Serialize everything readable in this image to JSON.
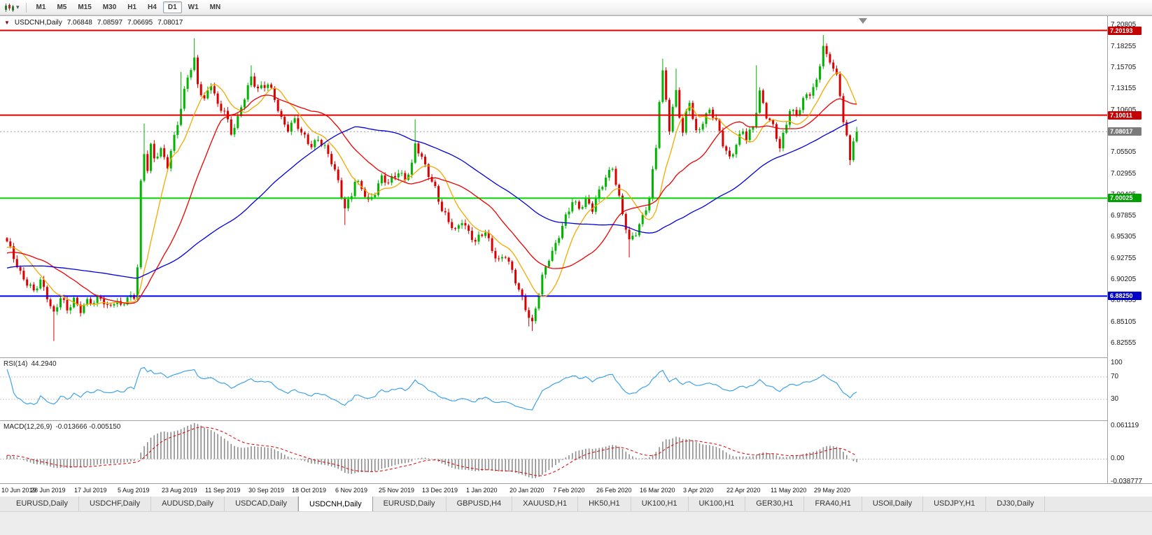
{
  "toolbar": {
    "timeframes": [
      "M1",
      "M5",
      "M15",
      "M30",
      "H1",
      "H4",
      "D1",
      "W1",
      "MN"
    ],
    "active_timeframe": "D1"
  },
  "icons": {
    "one_click": "▼",
    "chart_dropdown": "▾"
  },
  "chart": {
    "symbol": "USDCNH,Daily",
    "ohlc": {
      "open": "7.06848",
      "high": "7.08597",
      "low": "7.06695",
      "close": "7.08017"
    }
  },
  "indicators": {
    "rsi": {
      "name": "RSI(14)",
      "value": "44.2940"
    },
    "macd": {
      "name": "MACD(12,26,9)",
      "value": "-0.013666 -0.005150"
    }
  },
  "tabs": {
    "active_index": 4,
    "items": [
      "EURUSD,Daily",
      "USDCHF,Daily",
      "AUDUSD,Daily",
      "USDCAD,Daily",
      "USDCNH,Daily",
      "EURUSD,Daily",
      "GBPUSD,H4",
      "XAUUSD,H1",
      "HK50,H1",
      "UK100,H1",
      "UK100,H1",
      "GER30,H1",
      "FRA40,H1",
      "USOil,Daily",
      "USDJPY,H1",
      "DJ30,Daily"
    ]
  },
  "chart_data": {
    "type": "candlestick",
    "symbol": "USDCNH",
    "timeframe": "Daily",
    "num_candles": 255,
    "candles_per_label": 13,
    "x_labels": [
      "10 Jun 2019",
      "28 Jun 2019",
      "17 Jul 2019",
      "5 Aug 2019",
      "23 Aug 2019",
      "11 Sep 2019",
      "30 Sep 2019",
      "18 Oct 2019",
      "6 Nov 2019",
      "25 Nov 2019",
      "13 Dec 2019",
      "1 Jan 2020",
      "20 Jan 2020",
      "7 Feb 2020",
      "26 Feb 2020",
      "16 Mar 2020",
      "3 Apr 2020",
      "22 Apr 2020",
      "11 May 2020",
      "29 May 2020"
    ],
    "price_axis": {
      "min": 6.8105,
      "max": 7.2175
    },
    "price_ticks": [
      "7.20805",
      "7.18255",
      "7.15705",
      "7.13155",
      "7.10605",
      "7.08055",
      "7.05505",
      "7.02955",
      "7.00405",
      "6.97855",
      "6.95305",
      "6.92755",
      "6.90205",
      "6.87655",
      "6.85105",
      "6.82555"
    ],
    "badges": [
      {
        "label": "7.20193",
        "price": 7.20193,
        "color": "#c40000"
      },
      {
        "label": "7.10011",
        "price": 7.10011,
        "color": "#c40000"
      },
      {
        "label": "7.08017",
        "price": 7.08017,
        "color": "#7a7a7a"
      },
      {
        "label": "7.00025",
        "price": 7.00025,
        "color": "#00a000"
      },
      {
        "label": "6.88250",
        "price": 6.8825,
        "color": "#0000c8"
      }
    ],
    "hlines": [
      {
        "price": 7.20193,
        "color": "#e00000",
        "width": 2
      },
      {
        "price": 7.10011,
        "color": "#e00000",
        "width": 2
      },
      {
        "price": 7.00025,
        "color": "#00d300",
        "width": 2
      },
      {
        "price": 6.8825,
        "color": "#0000f0",
        "width": 2
      }
    ],
    "bid_line": {
      "price": 7.08017,
      "color": "#a0a0a0"
    },
    "last_candle": {
      "open": 7.06848,
      "high": 7.08597,
      "low": 7.06695,
      "close": 7.08017
    },
    "close_anchors": [
      [
        0,
        6.946
      ],
      [
        2,
        6.93
      ],
      [
        4,
        6.912
      ],
      [
        6,
        6.898
      ],
      [
        8,
        6.886
      ],
      [
        10,
        6.9
      ],
      [
        12,
        6.884
      ],
      [
        14,
        6.862
      ],
      [
        16,
        6.88
      ],
      [
        18,
        6.864
      ],
      [
        20,
        6.879
      ],
      [
        22,
        6.868
      ],
      [
        24,
        6.876
      ],
      [
        26,
        6.872
      ],
      [
        28,
        6.881
      ],
      [
        30,
        6.871
      ],
      [
        32,
        6.877
      ],
      [
        34,
        6.869
      ],
      [
        36,
        6.878
      ],
      [
        38,
        6.884
      ],
      [
        39,
        6.92
      ],
      [
        40,
        7.02
      ],
      [
        41,
        7.056
      ],
      [
        42,
        7.034
      ],
      [
        43,
        7.06
      ],
      [
        44,
        7.046
      ],
      [
        46,
        7.058
      ],
      [
        48,
        7.042
      ],
      [
        50,
        7.074
      ],
      [
        52,
        7.106
      ],
      [
        54,
        7.146
      ],
      [
        56,
        7.168
      ],
      [
        57,
        7.14
      ],
      [
        59,
        7.118
      ],
      [
        61,
        7.136
      ],
      [
        63,
        7.11
      ],
      [
        65,
        7.108
      ],
      [
        67,
        7.08
      ],
      [
        69,
        7.094
      ],
      [
        71,
        7.12
      ],
      [
        73,
        7.146
      ],
      [
        75,
        7.134
      ],
      [
        78,
        7.136
      ],
      [
        80,
        7.118
      ],
      [
        82,
        7.096
      ],
      [
        84,
        7.086
      ],
      [
        86,
        7.094
      ],
      [
        88,
        7.076
      ],
      [
        91,
        7.064
      ],
      [
        93,
        7.074
      ],
      [
        95,
        7.06
      ],
      [
        97,
        7.042
      ],
      [
        99,
        7.02
      ],
      [
        101,
        6.99
      ],
      [
        103,
        7.006
      ],
      [
        104,
        7.02
      ],
      [
        106,
        7.01
      ],
      [
        108,
        6.996
      ],
      [
        110,
        7.01
      ],
      [
        112,
        7.026
      ],
      [
        114,
        7.016
      ],
      [
        117,
        7.032
      ],
      [
        119,
        7.026
      ],
      [
        121,
        7.04
      ],
      [
        122,
        7.064
      ],
      [
        124,
        7.046
      ],
      [
        126,
        7.03
      ],
      [
        128,
        7.014
      ],
      [
        130,
        6.986
      ],
      [
        132,
        6.97
      ],
      [
        134,
        6.96
      ],
      [
        136,
        6.976
      ],
      [
        138,
        6.96
      ],
      [
        140,
        6.946
      ],
      [
        143,
        6.96
      ],
      [
        145,
        6.94
      ],
      [
        147,
        6.926
      ],
      [
        149,
        6.93
      ],
      [
        151,
        6.91
      ],
      [
        153,
        6.892
      ],
      [
        155,
        6.87
      ],
      [
        157,
        6.848
      ],
      [
        158,
        6.866
      ],
      [
        160,
        6.904
      ],
      [
        162,
        6.93
      ],
      [
        164,
        6.946
      ],
      [
        166,
        6.966
      ],
      [
        168,
        6.984
      ],
      [
        169,
        6.996
      ],
      [
        171,
        6.99
      ],
      [
        173,
        7.0
      ],
      [
        175,
        6.986
      ],
      [
        177,
        7.006
      ],
      [
        179,
        7.026
      ],
      [
        181,
        7.04
      ],
      [
        182,
        7.02
      ],
      [
        184,
        6.98
      ],
      [
        186,
        6.946
      ],
      [
        188,
        6.96
      ],
      [
        190,
        6.98
      ],
      [
        192,
        7.0
      ],
      [
        194,
        7.06
      ],
      [
        195,
        7.116
      ],
      [
        196,
        7.15
      ],
      [
        197,
        7.12
      ],
      [
        198,
        7.086
      ],
      [
        199,
        7.11
      ],
      [
        200,
        7.13
      ],
      [
        201,
        7.1
      ],
      [
        202,
        7.076
      ],
      [
        203,
        7.1
      ],
      [
        204,
        7.116
      ],
      [
        205,
        7.096
      ],
      [
        206,
        7.08
      ],
      [
        208,
        7.094
      ],
      [
        210,
        7.106
      ],
      [
        212,
        7.09
      ],
      [
        214,
        7.066
      ],
      [
        216,
        7.05
      ],
      [
        218,
        7.066
      ],
      [
        220,
        7.08
      ],
      [
        221,
        7.07
      ],
      [
        223,
        7.086
      ],
      [
        225,
        7.13
      ],
      [
        227,
        7.1
      ],
      [
        229,
        7.084
      ],
      [
        231,
        7.06
      ],
      [
        233,
        7.092
      ],
      [
        234,
        7.11
      ],
      [
        236,
        7.1
      ],
      [
        238,
        7.116
      ],
      [
        240,
        7.126
      ],
      [
        242,
        7.142
      ],
      [
        244,
        7.186
      ],
      [
        245,
        7.17
      ],
      [
        247,
        7.156
      ],
      [
        248,
        7.144
      ],
      [
        249,
        7.122
      ],
      [
        250,
        7.096
      ],
      [
        251,
        7.076
      ],
      [
        252,
        7.046
      ],
      [
        253,
        7.06848
      ],
      [
        254,
        7.08017
      ]
    ],
    "high_marks": [
      [
        41,
        7.09
      ],
      [
        52,
        7.152
      ],
      [
        56,
        7.1925
      ],
      [
        73,
        7.16
      ],
      [
        122,
        7.095
      ],
      [
        196,
        7.168
      ],
      [
        200,
        7.156
      ],
      [
        224,
        7.16
      ],
      [
        244,
        7.1965
      ]
    ],
    "low_marks": [
      [
        14,
        6.8285
      ],
      [
        101,
        6.968
      ],
      [
        156,
        6.846
      ],
      [
        157,
        6.8405
      ],
      [
        186,
        6.929
      ],
      [
        252,
        7.04
      ]
    ],
    "pre_history": {
      "bars": 80,
      "start": 6.873,
      "end": 6.945
    },
    "noise": {
      "a1": 0.0035,
      "f1": 1.93,
      "a2": 0.0025,
      "f2": 0.71,
      "p2": 2.0
    },
    "moving_averages": [
      {
        "type": "sma",
        "period": 10,
        "color": "#f6a800"
      },
      {
        "type": "sma",
        "period": 25,
        "color": "#ee0000"
      },
      {
        "type": "sma",
        "period": 65,
        "color": "#0000dd"
      }
    ],
    "rsi": {
      "period": 14,
      "levels": [
        70,
        30
      ],
      "color": "#3fa3e8",
      "scale_labels": [
        "100",
        "70",
        "30"
      ]
    },
    "macd": {
      "fast": 12,
      "slow": 26,
      "signal": 9,
      "hist_color": "#8c8c8c",
      "signal_color": "#e00000",
      "scale_labels": [
        "0.061119",
        "0.00",
        "-0.038777"
      ],
      "axis": {
        "min": -0.038777,
        "max": 0.061119
      }
    },
    "candle_colors": {
      "bull": "#00b400",
      "bear": "#dd0000"
    }
  }
}
